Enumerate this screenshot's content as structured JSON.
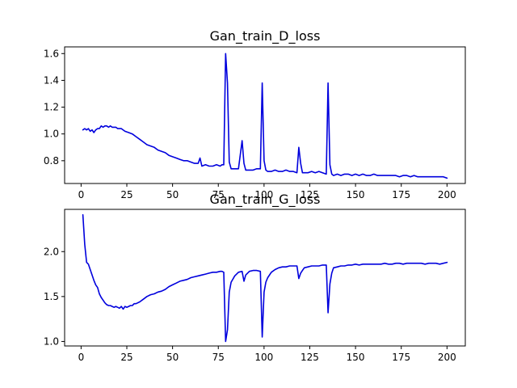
{
  "chart_data": [
    {
      "type": "line",
      "title": "Gan_train_D_loss",
      "xlabel": "",
      "ylabel": "",
      "xlim": [
        -9,
        210
      ],
      "ylim": [
        0.63,
        1.65
      ],
      "xticks": [
        0,
        25,
        50,
        75,
        100,
        125,
        150,
        175,
        200
      ],
      "yticks": [
        0.8,
        1.0,
        1.2,
        1.4,
        1.6
      ],
      "ytick_labels": [
        "0.8",
        "1.0",
        "1.2",
        "1.4",
        "1.6"
      ],
      "grid": false,
      "series": [
        {
          "color": "#0000dd",
          "points": [
            [
              1,
              1.03
            ],
            [
              2,
              1.04
            ],
            [
              3,
              1.03
            ],
            [
              4,
              1.04
            ],
            [
              5,
              1.02
            ],
            [
              6,
              1.03
            ],
            [
              7,
              1.01
            ],
            [
              8,
              1.03
            ],
            [
              9,
              1.04
            ],
            [
              10,
              1.04
            ],
            [
              11,
              1.06
            ],
            [
              12,
              1.05
            ],
            [
              13,
              1.06
            ],
            [
              14,
              1.06
            ],
            [
              15,
              1.05
            ],
            [
              16,
              1.06
            ],
            [
              17,
              1.05
            ],
            [
              18,
              1.05
            ],
            [
              19,
              1.05
            ],
            [
              20,
              1.04
            ],
            [
              22,
              1.04
            ],
            [
              24,
              1.02
            ],
            [
              26,
              1.01
            ],
            [
              28,
              1.0
            ],
            [
              30,
              0.98
            ],
            [
              32,
              0.96
            ],
            [
              34,
              0.94
            ],
            [
              36,
              0.92
            ],
            [
              38,
              0.91
            ],
            [
              40,
              0.9
            ],
            [
              42,
              0.88
            ],
            [
              44,
              0.87
            ],
            [
              46,
              0.86
            ],
            [
              48,
              0.84
            ],
            [
              50,
              0.83
            ],
            [
              52,
              0.82
            ],
            [
              54,
              0.81
            ],
            [
              56,
              0.8
            ],
            [
              58,
              0.8
            ],
            [
              60,
              0.79
            ],
            [
              62,
              0.78
            ],
            [
              64,
              0.78
            ],
            [
              65,
              0.82
            ],
            [
              66,
              0.76
            ],
            [
              68,
              0.77
            ],
            [
              70,
              0.76
            ],
            [
              72,
              0.76
            ],
            [
              74,
              0.77
            ],
            [
              76,
              0.76
            ],
            [
              77,
              0.77
            ],
            [
              78,
              0.77
            ],
            [
              79,
              1.6
            ],
            [
              80,
              1.38
            ],
            [
              81,
              0.79
            ],
            [
              82,
              0.74
            ],
            [
              84,
              0.74
            ],
            [
              86,
              0.74
            ],
            [
              88,
              0.95
            ],
            [
              89,
              0.78
            ],
            [
              90,
              0.73
            ],
            [
              92,
              0.73
            ],
            [
              94,
              0.73
            ],
            [
              96,
              0.74
            ],
            [
              98,
              0.74
            ],
            [
              99,
              1.38
            ],
            [
              100,
              0.8
            ],
            [
              101,
              0.73
            ],
            [
              102,
              0.72
            ],
            [
              104,
              0.72
            ],
            [
              106,
              0.73
            ],
            [
              108,
              0.72
            ],
            [
              110,
              0.72
            ],
            [
              112,
              0.73
            ],
            [
              114,
              0.72
            ],
            [
              116,
              0.72
            ],
            [
              118,
              0.71
            ],
            [
              119,
              0.9
            ],
            [
              120,
              0.78
            ],
            [
              121,
              0.71
            ],
            [
              122,
              0.71
            ],
            [
              124,
              0.71
            ],
            [
              126,
              0.72
            ],
            [
              128,
              0.71
            ],
            [
              130,
              0.72
            ],
            [
              132,
              0.71
            ],
            [
              134,
              0.7
            ],
            [
              135,
              1.38
            ],
            [
              136,
              0.77
            ],
            [
              137,
              0.7
            ],
            [
              138,
              0.69
            ],
            [
              140,
              0.7
            ],
            [
              142,
              0.69
            ],
            [
              144,
              0.7
            ],
            [
              146,
              0.7
            ],
            [
              148,
              0.69
            ],
            [
              150,
              0.7
            ],
            [
              152,
              0.69
            ],
            [
              154,
              0.7
            ],
            [
              156,
              0.69
            ],
            [
              158,
              0.69
            ],
            [
              160,
              0.7
            ],
            [
              162,
              0.69
            ],
            [
              164,
              0.69
            ],
            [
              166,
              0.69
            ],
            [
              168,
              0.69
            ],
            [
              170,
              0.69
            ],
            [
              172,
              0.69
            ],
            [
              174,
              0.68
            ],
            [
              176,
              0.69
            ],
            [
              178,
              0.69
            ],
            [
              180,
              0.68
            ],
            [
              182,
              0.69
            ],
            [
              184,
              0.68
            ],
            [
              186,
              0.68
            ],
            [
              188,
              0.68
            ],
            [
              190,
              0.68
            ],
            [
              192,
              0.68
            ],
            [
              194,
              0.68
            ],
            [
              196,
              0.68
            ],
            [
              198,
              0.68
            ],
            [
              200,
              0.67
            ]
          ]
        }
      ]
    },
    {
      "type": "line",
      "title": "Gan_train_G_loss",
      "xlabel": "",
      "ylabel": "",
      "xlim": [
        -9,
        210
      ],
      "ylim": [
        0.95,
        2.47
      ],
      "xticks": [
        0,
        25,
        50,
        75,
        100,
        125,
        150,
        175,
        200
      ],
      "yticks": [
        1.0,
        1.5,
        2.0
      ],
      "ytick_labels": [
        "1.0",
        "1.5",
        "2.0"
      ],
      "grid": false,
      "series": [
        {
          "color": "#0000dd",
          "points": [
            [
              1,
              2.41
            ],
            [
              2,
              2.08
            ],
            [
              3,
              1.88
            ],
            [
              4,
              1.86
            ],
            [
              5,
              1.8
            ],
            [
              6,
              1.74
            ],
            [
              7,
              1.68
            ],
            [
              8,
              1.63
            ],
            [
              9,
              1.6
            ],
            [
              10,
              1.53
            ],
            [
              11,
              1.49
            ],
            [
              12,
              1.46
            ],
            [
              13,
              1.43
            ],
            [
              14,
              1.41
            ],
            [
              15,
              1.4
            ],
            [
              16,
              1.4
            ],
            [
              17,
              1.39
            ],
            [
              18,
              1.38
            ],
            [
              19,
              1.39
            ],
            [
              20,
              1.38
            ],
            [
              21,
              1.37
            ],
            [
              22,
              1.39
            ],
            [
              23,
              1.36
            ],
            [
              24,
              1.39
            ],
            [
              25,
              1.38
            ],
            [
              26,
              1.39
            ],
            [
              27,
              1.4
            ],
            [
              28,
              1.4
            ],
            [
              29,
              1.42
            ],
            [
              30,
              1.42
            ],
            [
              32,
              1.44
            ],
            [
              34,
              1.47
            ],
            [
              36,
              1.5
            ],
            [
              38,
              1.52
            ],
            [
              40,
              1.53
            ],
            [
              42,
              1.55
            ],
            [
              44,
              1.56
            ],
            [
              46,
              1.58
            ],
            [
              48,
              1.61
            ],
            [
              50,
              1.63
            ],
            [
              52,
              1.65
            ],
            [
              54,
              1.67
            ],
            [
              56,
              1.68
            ],
            [
              58,
              1.69
            ],
            [
              60,
              1.71
            ],
            [
              62,
              1.72
            ],
            [
              64,
              1.73
            ],
            [
              66,
              1.74
            ],
            [
              68,
              1.75
            ],
            [
              70,
              1.76
            ],
            [
              72,
              1.77
            ],
            [
              74,
              1.77
            ],
            [
              76,
              1.78
            ],
            [
              77,
              1.78
            ],
            [
              78,
              1.77
            ],
            [
              79,
              1.0
            ],
            [
              80,
              1.13
            ],
            [
              81,
              1.55
            ],
            [
              82,
              1.66
            ],
            [
              84,
              1.73
            ],
            [
              86,
              1.77
            ],
            [
              88,
              1.78
            ],
            [
              89,
              1.67
            ],
            [
              90,
              1.74
            ],
            [
              92,
              1.78
            ],
            [
              94,
              1.79
            ],
            [
              96,
              1.79
            ],
            [
              98,
              1.78
            ],
            [
              99,
              1.05
            ],
            [
              100,
              1.55
            ],
            [
              101,
              1.66
            ],
            [
              102,
              1.71
            ],
            [
              104,
              1.77
            ],
            [
              106,
              1.8
            ],
            [
              108,
              1.82
            ],
            [
              110,
              1.83
            ],
            [
              112,
              1.83
            ],
            [
              114,
              1.84
            ],
            [
              116,
              1.84
            ],
            [
              118,
              1.84
            ],
            [
              119,
              1.7
            ],
            [
              120,
              1.76
            ],
            [
              121,
              1.79
            ],
            [
              122,
              1.82
            ],
            [
              124,
              1.83
            ],
            [
              126,
              1.84
            ],
            [
              128,
              1.84
            ],
            [
              130,
              1.84
            ],
            [
              132,
              1.85
            ],
            [
              134,
              1.85
            ],
            [
              135,
              1.32
            ],
            [
              136,
              1.64
            ],
            [
              137,
              1.76
            ],
            [
              138,
              1.82
            ],
            [
              140,
              1.83
            ],
            [
              142,
              1.84
            ],
            [
              144,
              1.84
            ],
            [
              146,
              1.85
            ],
            [
              148,
              1.85
            ],
            [
              150,
              1.86
            ],
            [
              152,
              1.85
            ],
            [
              154,
              1.86
            ],
            [
              156,
              1.86
            ],
            [
              158,
              1.86
            ],
            [
              160,
              1.86
            ],
            [
              162,
              1.86
            ],
            [
              164,
              1.86
            ],
            [
              166,
              1.87
            ],
            [
              168,
              1.86
            ],
            [
              170,
              1.86
            ],
            [
              172,
              1.87
            ],
            [
              174,
              1.87
            ],
            [
              176,
              1.86
            ],
            [
              178,
              1.87
            ],
            [
              180,
              1.87
            ],
            [
              182,
              1.87
            ],
            [
              184,
              1.87
            ],
            [
              186,
              1.87
            ],
            [
              188,
              1.86
            ],
            [
              190,
              1.87
            ],
            [
              192,
              1.87
            ],
            [
              194,
              1.87
            ],
            [
              196,
              1.86
            ],
            [
              198,
              1.87
            ],
            [
              200,
              1.88
            ]
          ]
        }
      ]
    }
  ]
}
